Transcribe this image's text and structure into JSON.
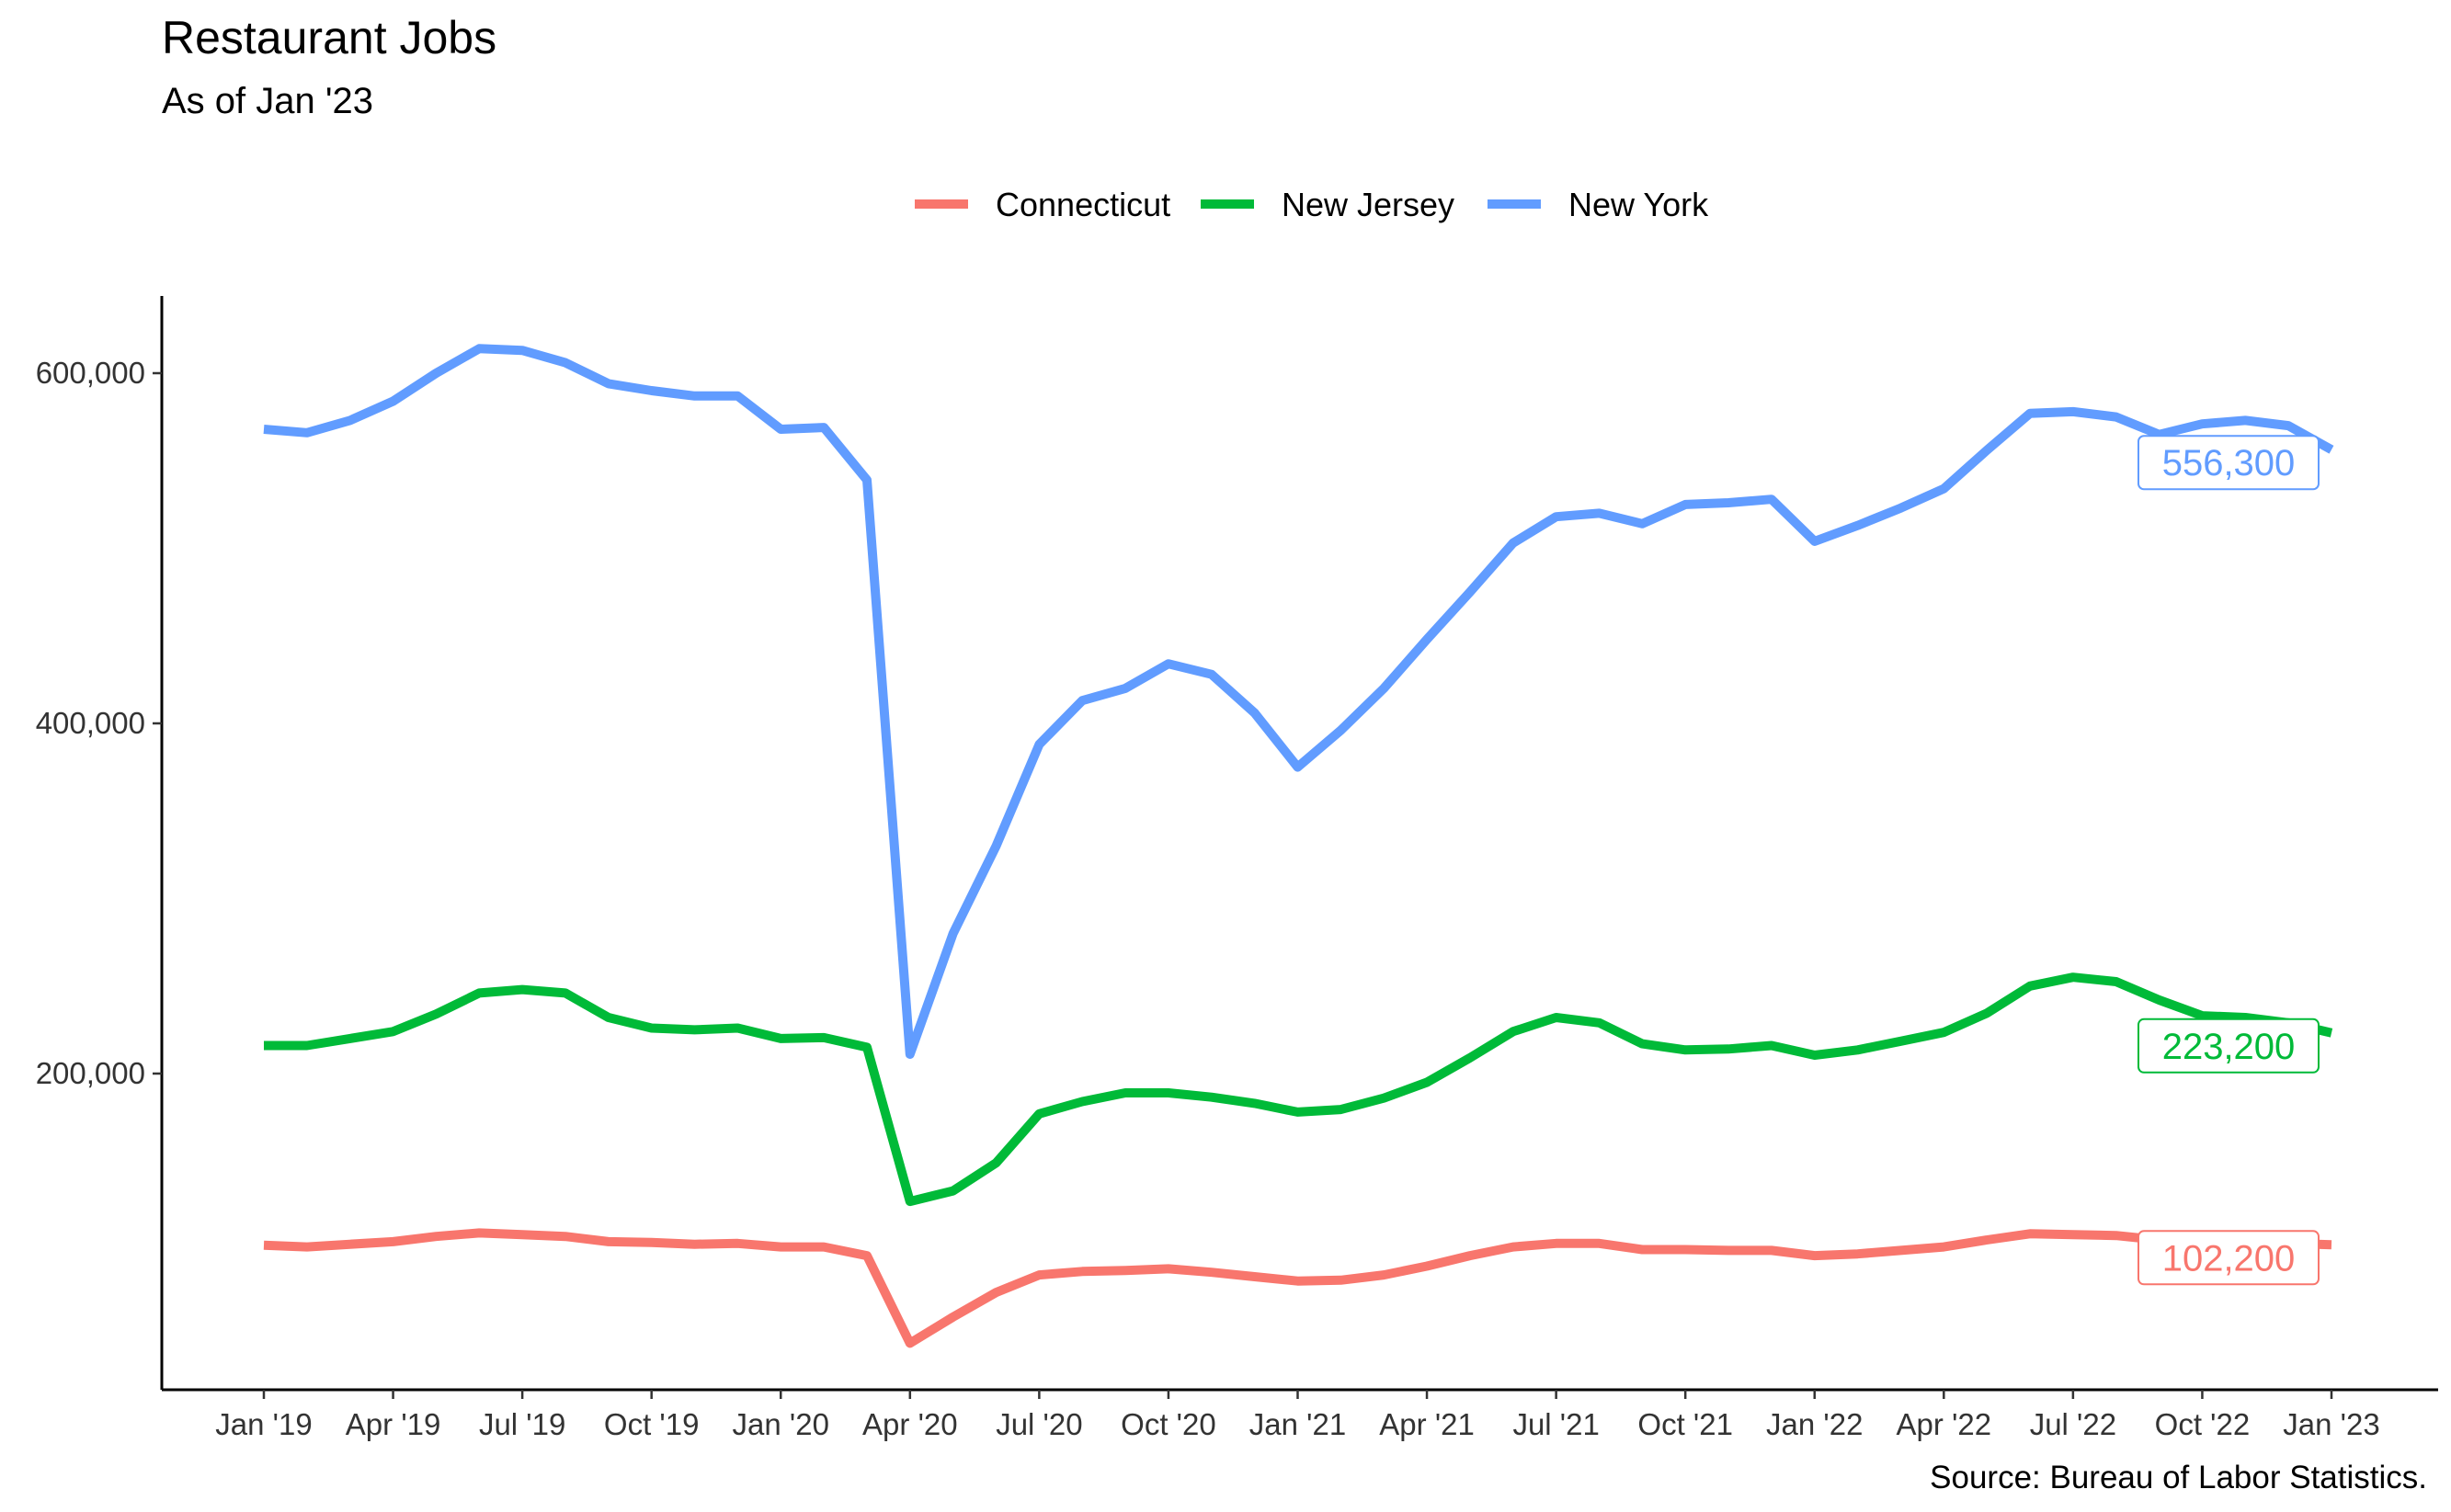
{
  "caption": "Source: Bureau of Labor Statistics.",
  "chart_data": {
    "type": "line",
    "title": "Restaurant Jobs",
    "subtitle": "As of Jan '23",
    "xlabel": "",
    "ylabel": "",
    "ylim": [
      20000,
      640000
    ],
    "y_ticks": [
      200000,
      400000,
      600000
    ],
    "y_tick_labels": [
      "200,000",
      "400,000",
      "600,000"
    ],
    "x_ticks": [
      "Jan '19",
      "Apr '19",
      "Jul '19",
      "Oct '19",
      "Jan '20",
      "Apr '20",
      "Jul '20",
      "Oct '20",
      "Jan '21",
      "Apr '21",
      "Jul '21",
      "Oct '21",
      "Jan '22",
      "Apr '22",
      "Jul '22",
      "Oct '22",
      "Jan '23"
    ],
    "grid": false,
    "legend": "top",
    "x": [
      "2019-01",
      "2019-02",
      "2019-03",
      "2019-04",
      "2019-05",
      "2019-06",
      "2019-07",
      "2019-08",
      "2019-09",
      "2019-10",
      "2019-11",
      "2019-12",
      "2020-01",
      "2020-02",
      "2020-03",
      "2020-04",
      "2020-05",
      "2020-06",
      "2020-07",
      "2020-08",
      "2020-09",
      "2020-10",
      "2020-11",
      "2020-12",
      "2021-01",
      "2021-02",
      "2021-03",
      "2021-04",
      "2021-05",
      "2021-06",
      "2021-07",
      "2021-08",
      "2021-09",
      "2021-10",
      "2021-11",
      "2021-12",
      "2022-01",
      "2022-02",
      "2022-03",
      "2022-04",
      "2022-05",
      "2022-06",
      "2022-07",
      "2022-08",
      "2022-09",
      "2022-10",
      "2022-11",
      "2022-12",
      "2023-01"
    ],
    "series": [
      {
        "name": "Connecticut",
        "color": "#F8766D",
        "end_label": "102,200",
        "values": [
          102000,
          101000,
          102500,
          104000,
          107000,
          109000,
          108000,
          107000,
          104000,
          103500,
          102500,
          103000,
          101000,
          101000,
          96000,
          46000,
          61000,
          75000,
          85000,
          87000,
          87500,
          88500,
          86500,
          84000,
          81500,
          82000,
          85000,
          90000,
          96000,
          101000,
          103000,
          103000,
          99500,
          99500,
          99000,
          99000,
          96000,
          97000,
          99000,
          101000,
          105000,
          108500,
          108000,
          107500,
          105000,
          104000,
          103500,
          103000,
          102200
        ]
      },
      {
        "name": "New Jersey",
        "color": "#00BA38",
        "end_label": "223,200",
        "values": [
          216000,
          216000,
          220000,
          224000,
          234000,
          246000,
          248000,
          246000,
          232000,
          226000,
          225000,
          226000,
          220000,
          220500,
          215000,
          127000,
          133000,
          149000,
          177000,
          184000,
          189000,
          189000,
          186500,
          183000,
          178000,
          179500,
          186000,
          195000,
          209000,
          224000,
          232000,
          229000,
          217000,
          213500,
          214000,
          216000,
          210500,
          213500,
          218500,
          223500,
          234500,
          250000,
          255000,
          252500,
          242000,
          233000,
          232000,
          229000,
          223200
        ]
      },
      {
        "name": "New York",
        "color": "#619CFF",
        "end_label": "556,300",
        "values": [
          568000,
          566000,
          573000,
          584000,
          600000,
          614000,
          613000,
          606000,
          594000,
          590000,
          587000,
          587000,
          568000,
          569000,
          539000,
          211000,
          280000,
          330000,
          388000,
          413000,
          420000,
          434000,
          428000,
          406000,
          375000,
          396000,
          420000,
          448000,
          475000,
          503000,
          518000,
          520000,
          514000,
          525000,
          526000,
          528000,
          504000,
          513000,
          523000,
          534000,
          556000,
          577000,
          578000,
          575000,
          565000,
          571000,
          573000,
          570000,
          556300
        ]
      }
    ]
  }
}
